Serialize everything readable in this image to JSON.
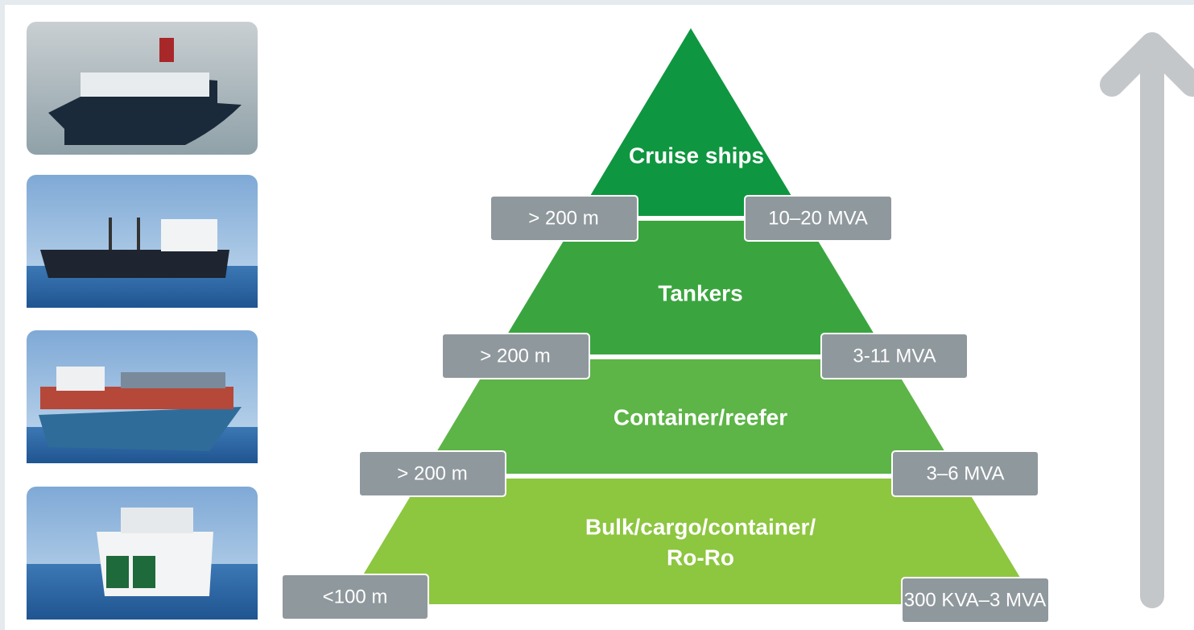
{
  "tiers": [
    {
      "label": [
        "Cruise ships"
      ],
      "length": "> 200 m",
      "power": "10–20 MVA"
    },
    {
      "label": [
        "Tankers"
      ],
      "length": "> 200 m",
      "power": "3-11 MVA"
    },
    {
      "label": [
        "Container/reefer"
      ],
      "length": "> 200 m",
      "power": "3–6 MVA"
    },
    {
      "label": [
        "Bulk/cargo/container/",
        "Ro-Ro"
      ],
      "length": "<100 m",
      "power": "300 KVA–3 MVA"
    }
  ]
}
